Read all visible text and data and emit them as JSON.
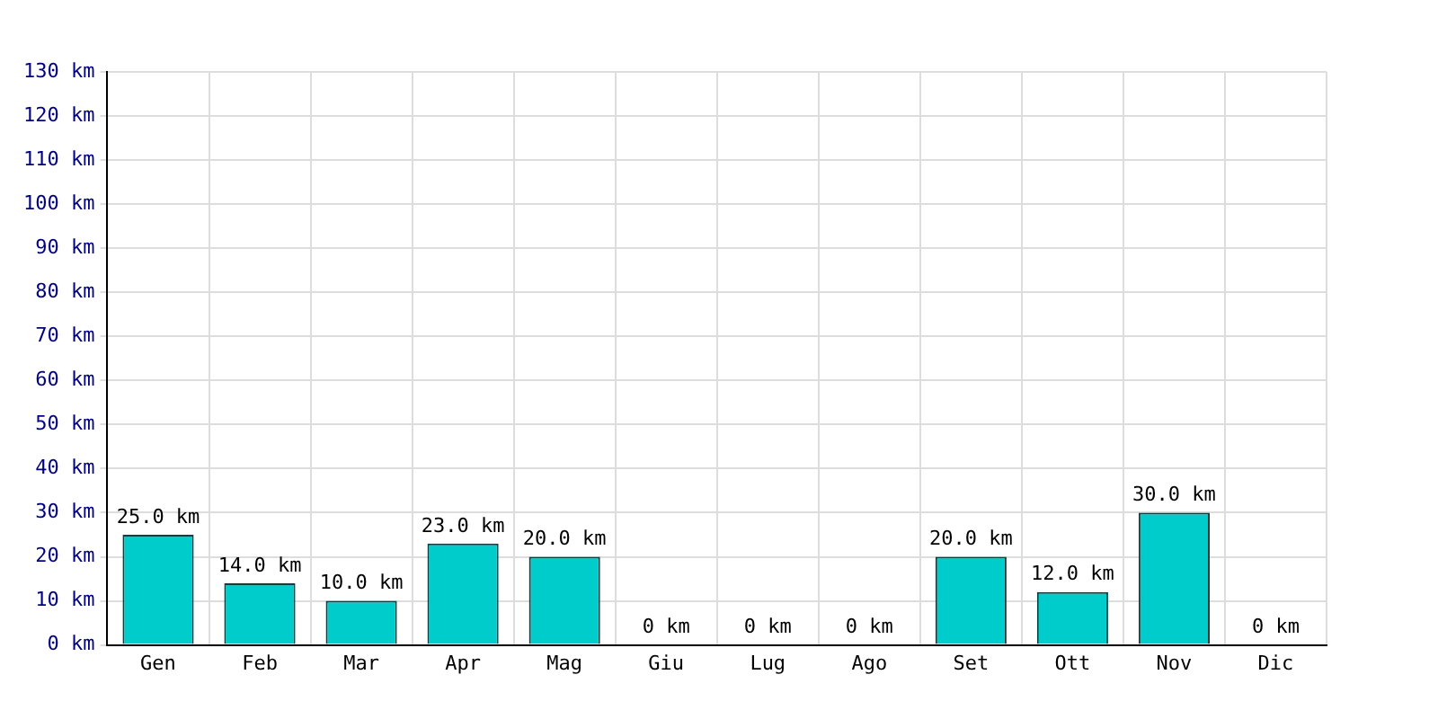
{
  "chart_data": {
    "type": "bar",
    "categories": [
      "Gen",
      "Feb",
      "Mar",
      "Apr",
      "Mag",
      "Giu",
      "Lug",
      "Ago",
      "Set",
      "Ott",
      "Nov",
      "Dic"
    ],
    "values": [
      25,
      14,
      10,
      23,
      20,
      0,
      0,
      0,
      20,
      12,
      30,
      0
    ],
    "value_labels": [
      "25.0 km",
      "14.0 km",
      "10.0 km",
      "23.0 km",
      "20.0 km",
      "0 km",
      "0 km",
      "0 km",
      "20.0 km",
      "12.0 km",
      "30.0 km",
      "0 km"
    ],
    "color": "#00cccc",
    "ylim": [
      0,
      130
    ],
    "yticks": [
      {
        "value": 0,
        "label": "0 km"
      },
      {
        "value": 10,
        "label": "10 km"
      },
      {
        "value": 20,
        "label": "20 km"
      },
      {
        "value": 30,
        "label": "30 km"
      },
      {
        "value": 40,
        "label": "40 km"
      },
      {
        "value": 50,
        "label": "50 km"
      },
      {
        "value": 60,
        "label": "60 km"
      },
      {
        "value": 70,
        "label": "70 km"
      },
      {
        "value": 80,
        "label": "80 km"
      },
      {
        "value": 90,
        "label": "90 km"
      },
      {
        "value": 100,
        "label": "100 km"
      },
      {
        "value": 110,
        "label": "110 km"
      },
      {
        "value": 120,
        "label": "120 km"
      },
      {
        "value": 130,
        "label": "130 km"
      }
    ],
    "grid": true
  }
}
